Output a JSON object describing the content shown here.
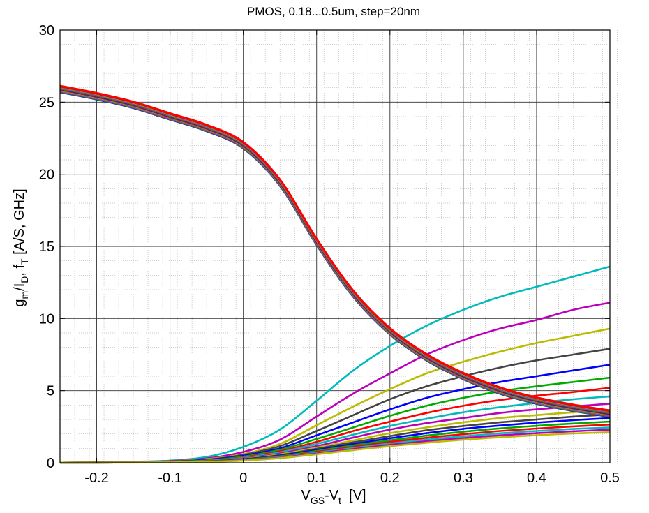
{
  "chart_data": {
    "type": "line",
    "title": "PMOS, 0.18...0.5um, step=20nm",
    "xlabel": {
      "main": "V",
      "sub1": "GS",
      "mid": "-V",
      "sub2": "t",
      "tail": "  [V]"
    },
    "ylabel": {
      "p1": "g",
      "s1": "m",
      "p2": "/I",
      "s2": "D",
      "p3": ", f",
      "s3": "T",
      "p4": " [A/S, GHz]"
    },
    "xlim": [
      -0.25,
      0.5
    ],
    "ylim": [
      0,
      30
    ],
    "xticks": [
      -0.2,
      -0.1,
      0,
      0.1,
      0.2,
      0.3,
      0.4,
      0.5
    ],
    "xtick_labels": [
      "-0.2",
      "-0.1",
      "0",
      "0.1",
      "0.2",
      "0.3",
      "0.4",
      "0.5"
    ],
    "yticks": [
      0,
      5,
      10,
      15,
      20,
      25,
      30
    ],
    "ytick_labels": [
      "0",
      "5",
      "10",
      "15",
      "20",
      "25",
      "30"
    ],
    "grid": "major and minor",
    "gm_id_x": [
      -0.25,
      -0.2,
      -0.15,
      -0.1,
      -0.05,
      0,
      0.05,
      0.1,
      0.15,
      0.2,
      0.25,
      0.3,
      0.35,
      0.4,
      0.45,
      0.5
    ],
    "gm_id_base": [
      25.9,
      25.4,
      24.8,
      24.0,
      23.2,
      22.0,
      19.4,
      15.3,
      11.7,
      9.1,
      7.3,
      6.0,
      5.0,
      4.3,
      3.8,
      3.4
    ],
    "gm_id_series_count": 17,
    "gm_id_colors": [
      "#0000ff",
      "#00aa00",
      "#ff0000",
      "#00bbbb",
      "#bb00bb",
      "#bbbb00",
      "#444444",
      "#ff0000"
    ],
    "ft_x": [
      -0.25,
      -0.2,
      -0.15,
      -0.1,
      -0.05,
      0,
      0.05,
      0.1,
      0.15,
      0.2,
      0.25,
      0.3,
      0.35,
      0.4,
      0.45,
      0.5
    ],
    "ft_series": [
      {
        "color": "#00bbbb",
        "values": [
          0.01,
          0.03,
          0.07,
          0.15,
          0.4,
          1.1,
          2.3,
          4.3,
          6.4,
          8.1,
          9.5,
          10.6,
          11.5,
          12.2,
          12.9,
          13.6
        ]
      },
      {
        "color": "#bb00bb",
        "values": [
          0.01,
          0.02,
          0.05,
          0.12,
          0.3,
          0.75,
          1.6,
          3.2,
          4.8,
          6.2,
          7.5,
          8.5,
          9.3,
          9.9,
          10.6,
          11.1
        ]
      },
      {
        "color": "#bbbb00",
        "values": [
          0.01,
          0.02,
          0.04,
          0.1,
          0.25,
          0.6,
          1.3,
          2.6,
          3.9,
          5.1,
          6.2,
          7.0,
          7.7,
          8.3,
          8.8,
          9.3
        ]
      },
      {
        "color": "#444444",
        "values": [
          0.01,
          0.02,
          0.04,
          0.09,
          0.22,
          0.55,
          1.15,
          2.2,
          3.3,
          4.4,
          5.3,
          6.0,
          6.6,
          7.1,
          7.5,
          7.9
        ]
      },
      {
        "color": "#0000ff",
        "values": [
          0.01,
          0.02,
          0.03,
          0.08,
          0.2,
          0.48,
          1.0,
          1.9,
          2.8,
          3.7,
          4.5,
          5.1,
          5.6,
          6.0,
          6.4,
          6.8
        ]
      },
      {
        "color": "#00aa00",
        "values": [
          0.01,
          0.02,
          0.03,
          0.07,
          0.17,
          0.42,
          0.9,
          1.65,
          2.45,
          3.25,
          3.95,
          4.5,
          4.95,
          5.3,
          5.6,
          5.9
        ]
      },
      {
        "color": "#ff0000",
        "values": [
          0.01,
          0.02,
          0.03,
          0.06,
          0.15,
          0.37,
          0.8,
          1.45,
          2.2,
          2.85,
          3.45,
          3.95,
          4.35,
          4.65,
          4.9,
          5.2
        ]
      },
      {
        "color": "#00bbbb",
        "values": [
          0.01,
          0.01,
          0.03,
          0.06,
          0.14,
          0.34,
          0.72,
          1.3,
          1.95,
          2.55,
          3.05,
          3.5,
          3.85,
          4.15,
          4.4,
          4.6
        ]
      },
      {
        "color": "#bb00bb",
        "values": [
          0.01,
          0.01,
          0.02,
          0.05,
          0.12,
          0.3,
          0.64,
          1.15,
          1.75,
          2.3,
          2.75,
          3.1,
          3.45,
          3.7,
          3.9,
          4.1
        ]
      },
      {
        "color": "#bbbb00",
        "values": [
          0.01,
          0.01,
          0.02,
          0.05,
          0.11,
          0.27,
          0.58,
          1.05,
          1.55,
          2.05,
          2.45,
          2.8,
          3.1,
          3.3,
          3.5,
          3.65
        ]
      },
      {
        "color": "#444444",
        "values": [
          0.01,
          0.01,
          0.02,
          0.04,
          0.1,
          0.25,
          0.53,
          0.97,
          1.42,
          1.85,
          2.25,
          2.55,
          2.8,
          3.0,
          3.2,
          3.35
        ]
      },
      {
        "color": "#0000ff",
        "values": [
          0.01,
          0.01,
          0.02,
          0.04,
          0.09,
          0.23,
          0.49,
          0.88,
          1.3,
          1.7,
          2.05,
          2.35,
          2.58,
          2.78,
          2.95,
          3.1
        ]
      },
      {
        "color": "#00aa00",
        "values": [
          0.01,
          0.01,
          0.02,
          0.04,
          0.09,
          0.21,
          0.45,
          0.82,
          1.2,
          1.56,
          1.88,
          2.15,
          2.38,
          2.56,
          2.72,
          2.85
        ]
      },
      {
        "color": "#ff0000",
        "values": [
          0.01,
          0.01,
          0.02,
          0.03,
          0.08,
          0.19,
          0.41,
          0.75,
          1.1,
          1.44,
          1.73,
          1.98,
          2.2,
          2.37,
          2.52,
          2.65
        ]
      },
      {
        "color": "#00bbbb",
        "values": [
          0.01,
          0.01,
          0.02,
          0.03,
          0.07,
          0.18,
          0.38,
          0.69,
          1.02,
          1.33,
          1.6,
          1.84,
          2.04,
          2.2,
          2.34,
          2.45
        ]
      },
      {
        "color": "#bb00bb",
        "values": [
          0.01,
          0.01,
          0.02,
          0.03,
          0.07,
          0.16,
          0.35,
          0.64,
          0.95,
          1.24,
          1.49,
          1.71,
          1.9,
          2.05,
          2.18,
          2.3
        ]
      },
      {
        "color": "#bbbb00",
        "values": [
          0.01,
          0.01,
          0.01,
          0.03,
          0.06,
          0.15,
          0.32,
          0.59,
          0.88,
          1.15,
          1.39,
          1.6,
          1.77,
          1.91,
          2.03,
          2.12
        ]
      }
    ]
  }
}
